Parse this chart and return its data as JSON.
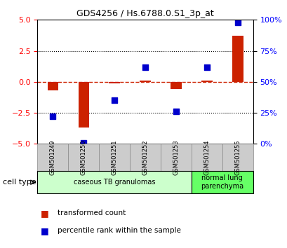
{
  "title": "GDS4256 / Hs.6788.0.S1_3p_at",
  "samples": [
    "GSM501249",
    "GSM501250",
    "GSM501251",
    "GSM501252",
    "GSM501253",
    "GSM501254",
    "GSM501255"
  ],
  "transformed_count": [
    -0.7,
    -3.7,
    -0.1,
    0.1,
    -0.6,
    0.1,
    3.7
  ],
  "percentile_rank": [
    22,
    1,
    35,
    62,
    26,
    62,
    98
  ],
  "ylim": [
    -5,
    5
  ],
  "yticks_left": [
    -5,
    -2.5,
    0,
    2.5,
    5
  ],
  "yticks_right_pct": [
    0,
    25,
    50,
    75,
    100
  ],
  "bar_color": "#cc2200",
  "dot_color": "#0000cc",
  "hline_color": "#cc2200",
  "dotline_y": [
    2.5,
    -2.5
  ],
  "groups": [
    {
      "label": "caseous TB granulomas",
      "samples": [
        0,
        1,
        2,
        3,
        4
      ],
      "color": "#ccffcc"
    },
    {
      "label": "normal lung\nparenchyma",
      "samples": [
        5,
        6
      ],
      "color": "#66ff66"
    }
  ],
  "cell_type_label": "cell type",
  "legend_bar_label": "transformed count",
  "legend_dot_label": "percentile rank within the sample",
  "background_color": "#ffffff",
  "tick_box_color": "#cccccc",
  "tick_box_edge": "#888888"
}
